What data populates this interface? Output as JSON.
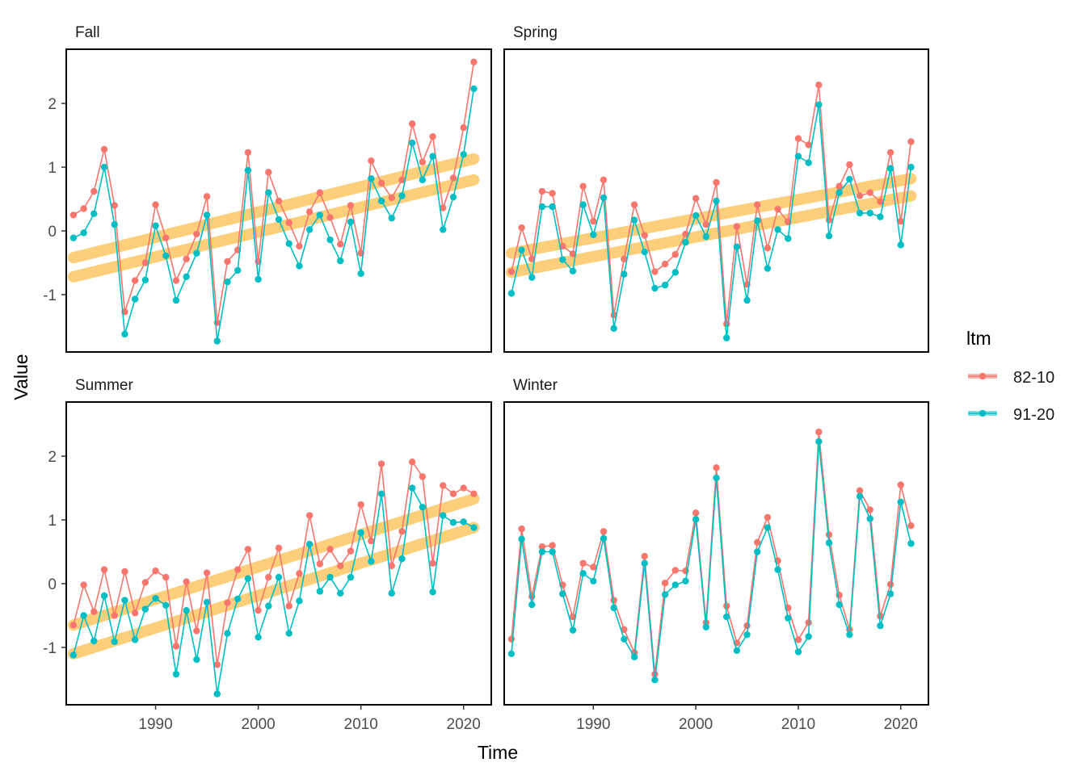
{
  "chart_data": {
    "type": "line",
    "xlabel": "Time",
    "ylabel": "Value",
    "legend": {
      "title": "ltm",
      "placement": "right",
      "entries": [
        {
          "label": "82-10",
          "color": "#F8766D"
        },
        {
          "label": "91-20",
          "color": "#00BFC4"
        }
      ]
    },
    "trend_color": "#FDBF4F",
    "x": [
      1982,
      1983,
      1984,
      1985,
      1986,
      1987,
      1988,
      1989,
      1990,
      1991,
      1992,
      1993,
      1994,
      1995,
      1996,
      1997,
      1998,
      1999,
      2000,
      2001,
      2002,
      2003,
      2004,
      2005,
      2006,
      2007,
      2008,
      2009,
      2010,
      2011,
      2012,
      2013,
      2014,
      2015,
      2016,
      2017,
      2018,
      2019,
      2020,
      2021
    ],
    "xlim": [
      1981.3,
      2022.7
    ],
    "xticks": [
      "1990",
      "2000",
      "2010",
      "2020"
    ],
    "ylim": [
      -1.9,
      2.85
    ],
    "yticks": [
      "-1",
      "0",
      "1",
      "2"
    ],
    "grid": false,
    "panels": [
      {
        "title": "Fall",
        "series": [
          {
            "name": "82-10",
            "values": [
              0.25,
              0.35,
              0.62,
              1.28,
              0.4,
              -1.27,
              -0.78,
              -0.5,
              0.41,
              -0.11,
              -0.78,
              -0.44,
              -0.05,
              0.54,
              -1.44,
              -0.48,
              -0.3,
              1.23,
              -0.48,
              0.92,
              0.47,
              0.13,
              -0.24,
              0.3,
              0.6,
              0.21,
              -0.21,
              0.4,
              -0.35,
              1.1,
              0.75,
              0.52,
              0.8,
              1.68,
              1.08,
              1.48,
              0.36,
              0.83,
              1.62,
              2.65
            ]
          },
          {
            "name": "91-20",
            "values": [
              -0.11,
              -0.03,
              0.27,
              1.0,
              0.1,
              -1.62,
              -1.07,
              -0.77,
              0.08,
              -0.39,
              -1.09,
              -0.72,
              -0.35,
              0.25,
              -1.73,
              -0.8,
              -0.62,
              0.95,
              -0.76,
              0.6,
              0.18,
              -0.2,
              -0.55,
              0.02,
              0.25,
              -0.14,
              -0.47,
              0.14,
              -0.67,
              0.82,
              0.47,
              0.2,
              0.55,
              1.38,
              0.8,
              1.17,
              0.02,
              0.53,
              1.2,
              2.23
            ]
          }
        ],
        "trends": [
          {
            "from": [
              1982,
              -0.42
            ],
            "to": [
              2021,
              1.13
            ]
          },
          {
            "from": [
              1982,
              -0.72
            ],
            "to": [
              2021,
              0.8
            ]
          }
        ]
      },
      {
        "title": "Spring",
        "series": [
          {
            "name": "82-10",
            "values": [
              -0.64,
              0.05,
              -0.44,
              0.62,
              0.59,
              -0.24,
              -0.36,
              0.7,
              0.15,
              0.8,
              -1.32,
              -0.44,
              0.41,
              -0.07,
              -0.64,
              -0.52,
              -0.37,
              -0.05,
              0.51,
              0.1,
              0.76,
              -1.46,
              0.07,
              -0.84,
              0.41,
              -0.27,
              0.34,
              0.14,
              1.45,
              1.35,
              2.29,
              0.17,
              0.7,
              1.04,
              0.55,
              0.6,
              0.46,
              1.23,
              0.15,
              1.4
            ]
          },
          {
            "name": "91-20",
            "values": [
              -0.98,
              -0.3,
              -0.73,
              0.38,
              0.38,
              -0.45,
              -0.63,
              0.41,
              -0.06,
              0.52,
              -1.53,
              -0.68,
              0.17,
              -0.33,
              -0.9,
              -0.85,
              -0.65,
              -0.18,
              0.24,
              -0.09,
              0.47,
              -1.68,
              -0.25,
              -1.09,
              0.16,
              -0.59,
              0.02,
              -0.12,
              1.17,
              1.07,
              1.98,
              -0.08,
              0.6,
              0.81,
              0.28,
              0.28,
              0.22,
              0.98,
              -0.22,
              1.0
            ]
          }
        ],
        "trends": [
          {
            "from": [
              1982,
              -0.35
            ],
            "to": [
              2021,
              0.82
            ]
          },
          {
            "from": [
              1982,
              -0.65
            ],
            "to": [
              2021,
              0.55
            ]
          }
        ]
      },
      {
        "title": "Summer",
        "series": [
          {
            "name": "82-10",
            "values": [
              -0.65,
              -0.02,
              -0.44,
              0.22,
              -0.5,
              0.19,
              -0.46,
              0.02,
              0.2,
              0.1,
              -0.98,
              0.03,
              -0.74,
              0.17,
              -1.27,
              -0.3,
              0.22,
              0.54,
              -0.42,
              0.1,
              0.56,
              -0.35,
              0.16,
              1.07,
              0.31,
              0.54,
              0.28,
              0.51,
              1.24,
              0.67,
              1.88,
              0.28,
              0.82,
              1.91,
              1.68,
              0.32,
              1.54,
              1.41,
              1.5,
              1.41
            ]
          },
          {
            "name": "91-20",
            "values": [
              -1.12,
              -0.5,
              -0.9,
              -0.19,
              -0.91,
              -0.26,
              -0.88,
              -0.4,
              -0.23,
              -0.34,
              -1.42,
              -0.42,
              -1.19,
              -0.29,
              -1.73,
              -0.78,
              -0.24,
              0.08,
              -0.84,
              -0.35,
              0.1,
              -0.78,
              -0.27,
              0.62,
              -0.12,
              0.1,
              -0.15,
              0.1,
              0.8,
              0.35,
              1.41,
              -0.15,
              0.39,
              1.5,
              1.2,
              -0.13,
              1.07,
              0.96,
              0.97,
              0.88
            ]
          }
        ],
        "trends": [
          {
            "from": [
              1982,
              -0.65
            ],
            "to": [
              2021,
              1.33
            ]
          },
          {
            "from": [
              1982,
              -1.1
            ],
            "to": [
              2021,
              0.88
            ]
          }
        ]
      },
      {
        "title": "Winter",
        "series": [
          {
            "name": "82-10",
            "values": [
              -0.87,
              0.86,
              -0.2,
              0.58,
              0.6,
              -0.02,
              -0.52,
              0.32,
              0.26,
              0.82,
              -0.26,
              -0.72,
              -1.08,
              0.43,
              -1.42,
              0.01,
              0.21,
              0.2,
              1.11,
              -0.61,
              1.82,
              -0.35,
              -0.93,
              -0.66,
              0.65,
              1.04,
              0.36,
              -0.38,
              -0.88,
              -0.61,
              2.38,
              0.77,
              -0.18,
              -0.72,
              1.46,
              1.16,
              -0.51,
              -0.01,
              1.55,
              0.91
            ]
          },
          {
            "name": "91-20",
            "values": [
              -1.1,
              0.7,
              -0.33,
              0.5,
              0.5,
              -0.16,
              -0.73,
              0.16,
              0.04,
              0.71,
              -0.38,
              -0.87,
              -1.15,
              0.32,
              -1.51,
              -0.17,
              -0.02,
              0.04,
              1.01,
              -0.68,
              1.66,
              -0.52,
              -1.05,
              -0.8,
              0.5,
              0.88,
              0.22,
              -0.54,
              -1.07,
              -0.83,
              2.23,
              0.64,
              -0.33,
              -0.8,
              1.37,
              1.02,
              -0.66,
              -0.16,
              1.28,
              0.63
            ]
          }
        ],
        "trends": []
      }
    ]
  }
}
